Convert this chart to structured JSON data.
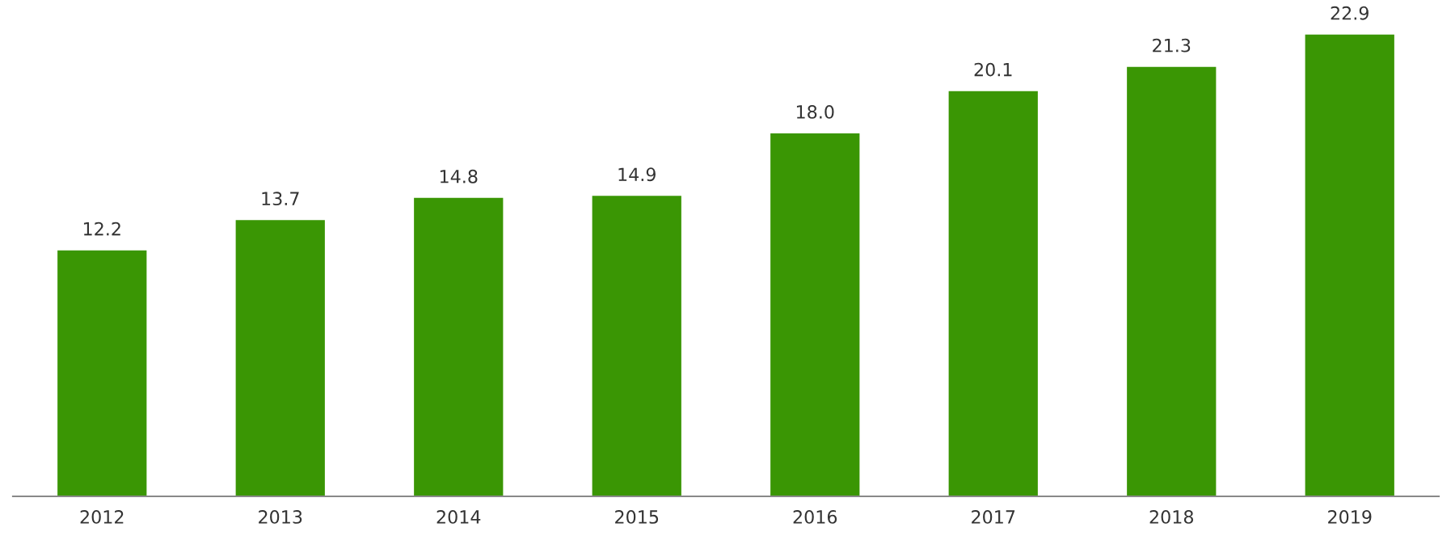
{
  "chart_data": {
    "type": "bar",
    "categories": [
      "2012",
      "2013",
      "2014",
      "2015",
      "2016",
      "2017",
      "2018",
      "2019"
    ],
    "values": [
      12.2,
      13.7,
      14.8,
      14.9,
      18.0,
      20.1,
      21.3,
      22.9
    ],
    "color": "#3a9604",
    "value_labels": [
      "12.2",
      "13.7",
      "14.8",
      "14.9",
      "18.0",
      "20.1",
      "21.3",
      "22.9"
    ],
    "grid": false,
    "legend": false
  }
}
